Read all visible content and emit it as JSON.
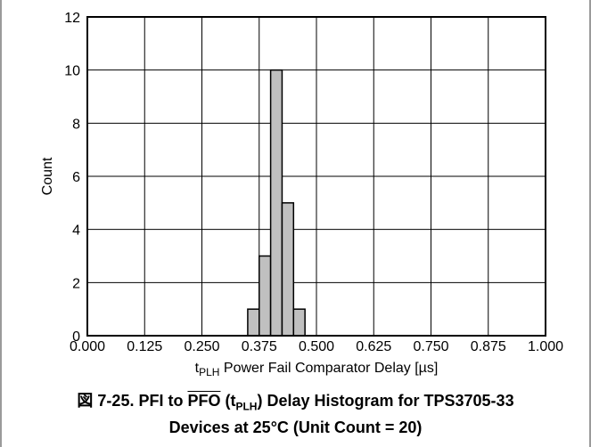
{
  "chart_data": {
    "type": "bar",
    "xlabel": {
      "prefix": "t",
      "subscript": "PLH",
      "rest": " Power Fail Comparator Delay [µs]"
    },
    "ylabel": "Count",
    "x_ticks": [
      "0.000",
      "0.125",
      "0.250",
      "0.375",
      "0.500",
      "0.625",
      "0.750",
      "0.875",
      "1.000"
    ],
    "y_ticks": [
      "0",
      "2",
      "4",
      "6",
      "8",
      "10",
      "12"
    ],
    "xlim": [
      0,
      1
    ],
    "ylim": [
      0,
      12
    ],
    "grid": true,
    "bins": [
      {
        "x": 0.3625,
        "value": 1
      },
      {
        "x": 0.3875,
        "value": 3
      },
      {
        "x": 0.4125,
        "value": 10
      },
      {
        "x": 0.4375,
        "value": 5
      },
      {
        "x": 0.4625,
        "value": 1
      }
    ],
    "bin_width": 0.025,
    "bar_color": "#c0c0c0"
  },
  "caption": {
    "line1_prefix": "図 7-25. PFI to ",
    "line1_overline": "PFO",
    "line1_paren_open": " (t",
    "line1_subscript": "PLH",
    "line1_suffix": ") Delay Histogram for TPS3705-33",
    "line2": "Devices at 25°C (Unit Count = 20)"
  }
}
